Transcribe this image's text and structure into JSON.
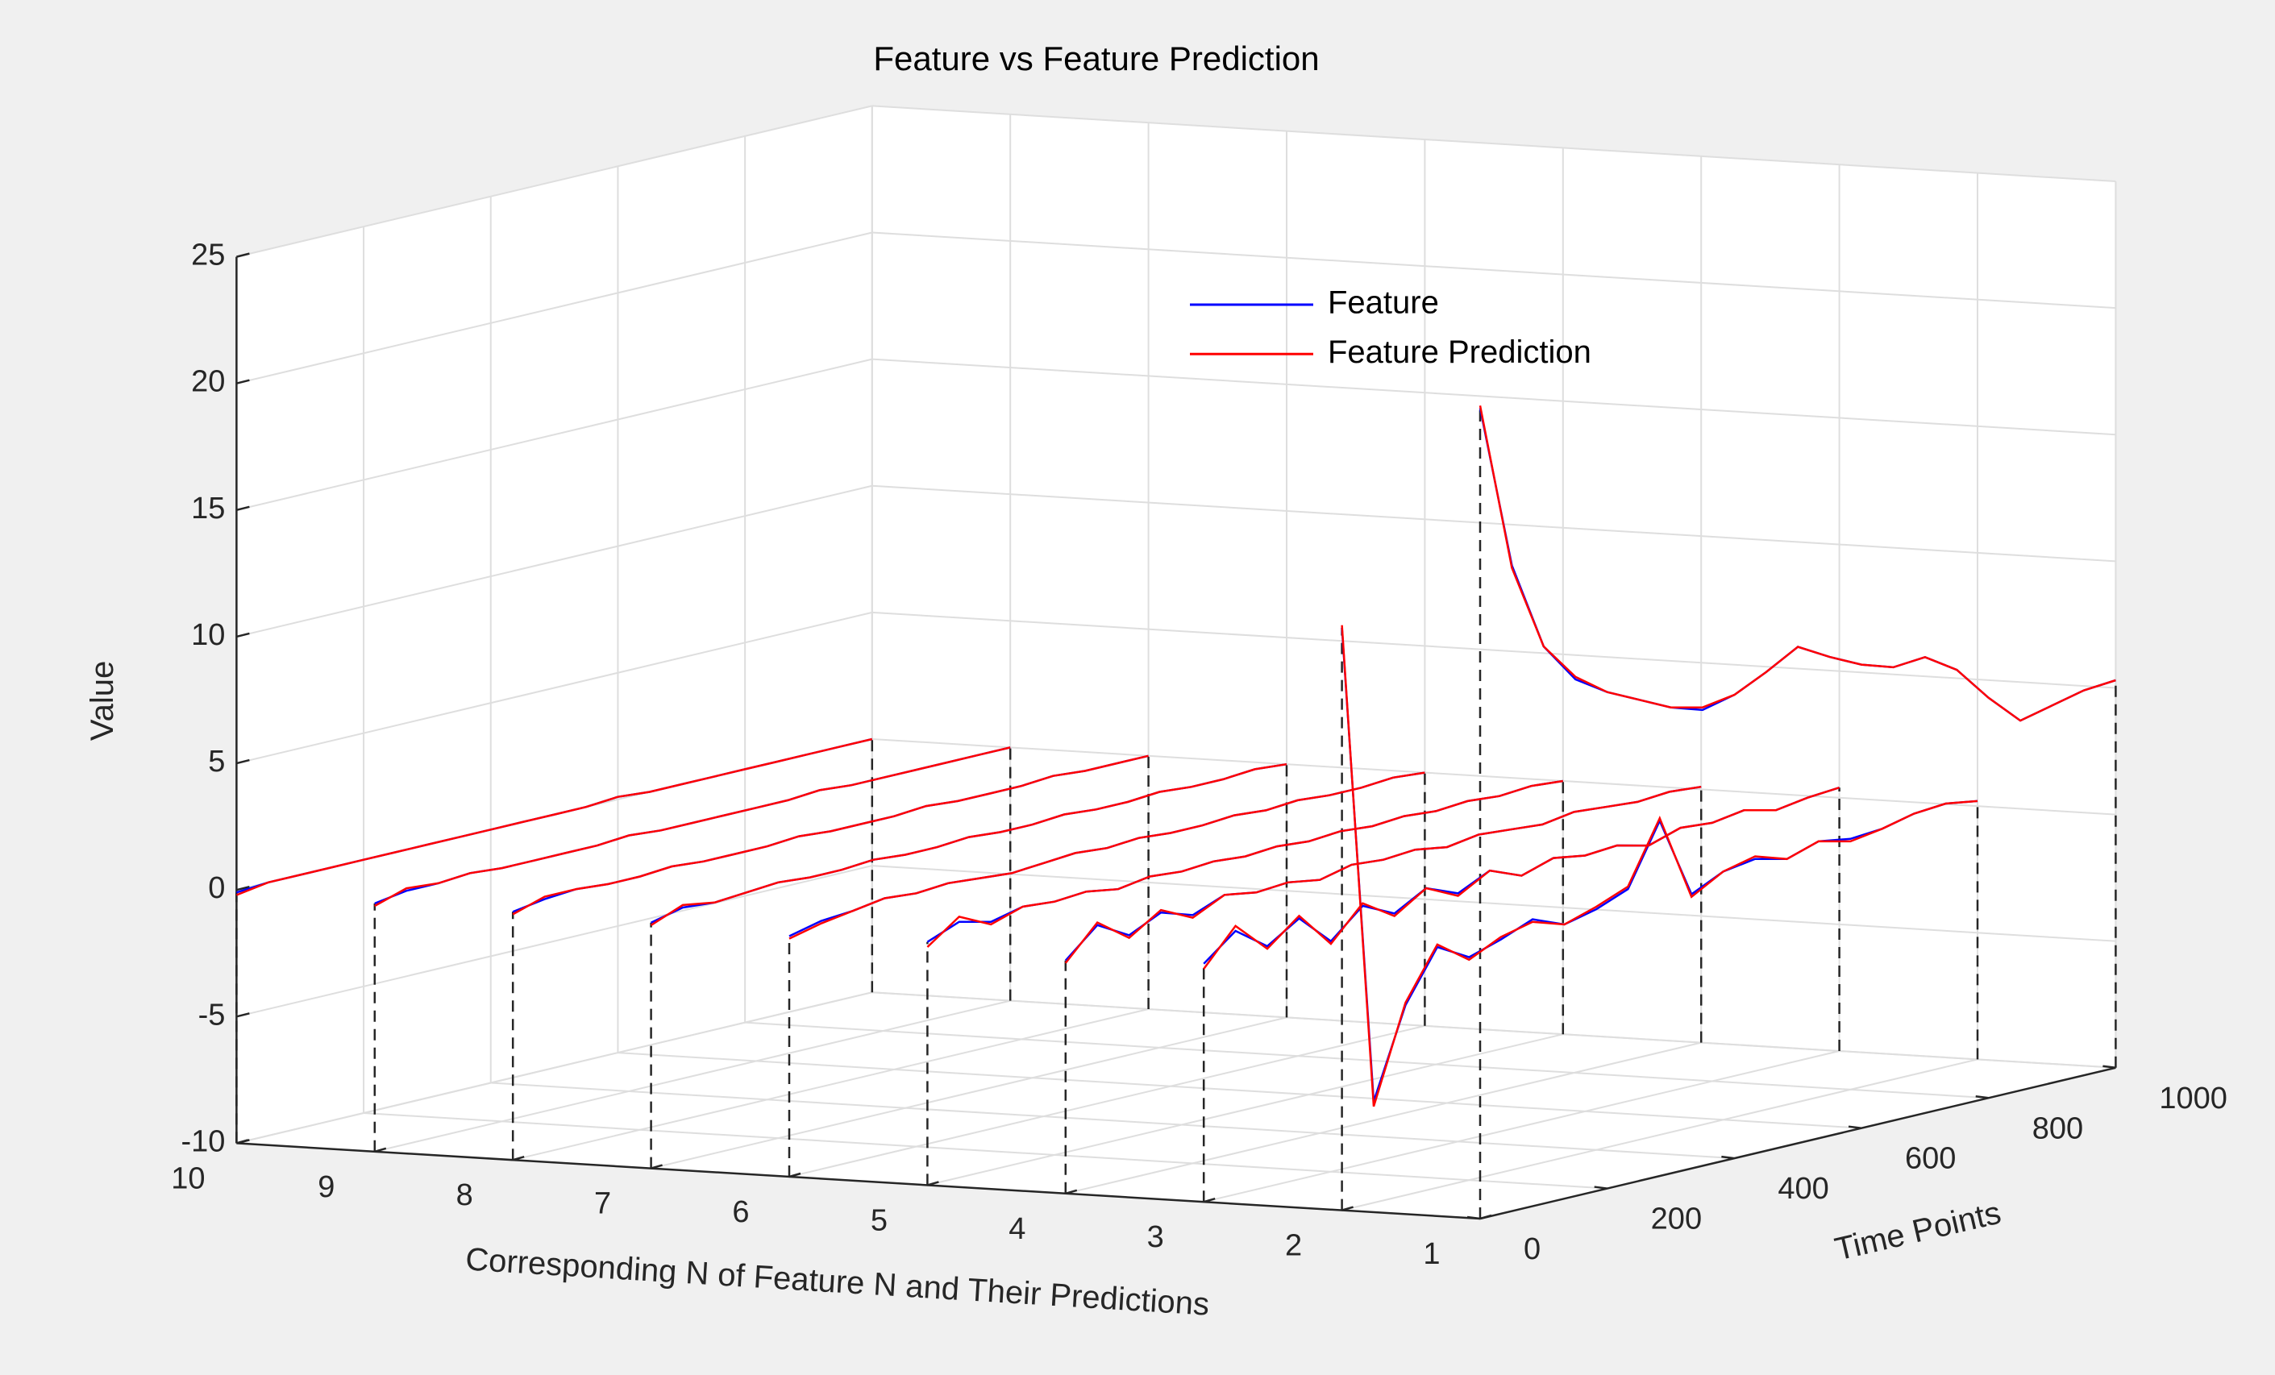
{
  "chart_data": {
    "type": "line3d",
    "title": "Feature vs Feature Prediction",
    "xlabel": "Time Points",
    "ylabel": "Corresponding N of Feature N and Their Predictions",
    "zlabel": "Value",
    "x": [
      0,
      50,
      100,
      150,
      200,
      250,
      300,
      350,
      400,
      450,
      500,
      550,
      600,
      650,
      700,
      750,
      800,
      850,
      900,
      950,
      1000
    ],
    "n": [
      1,
      2,
      3,
      4,
      5,
      6,
      7,
      8,
      9,
      10
    ],
    "xlim": [
      0,
      1000
    ],
    "xticks": [
      0,
      200,
      400,
      600,
      800,
      1000
    ],
    "ylim": [
      1,
      10
    ],
    "yticks": [
      1,
      2,
      3,
      4,
      5,
      6,
      7,
      8,
      9,
      10
    ],
    "zlim": [
      -10,
      25
    ],
    "zticks": [
      -10,
      -5,
      0,
      5,
      10,
      15,
      20,
      25
    ],
    "grid": true,
    "series": [
      {
        "name": "Feature",
        "color": "#0000ff",
        "values": [
          [
            22,
            15.5,
            12,
            10.4,
            9.6,
            9,
            8.4,
            8,
            8.3,
            8.9,
            9.6,
            8.9,
            8.3,
            7.9,
            8,
            7.2,
            5.8,
            4.6,
            4.9,
            5.2,
            5.3
          ],
          [
            13,
            -6,
            -2.5,
            -0.5,
            -1.2,
            -0.8,
            -0.3,
            -0.8,
            -0.5,
            0,
            2.4,
            -0.8,
            -0.2,
            0,
            -0.3,
            0.1,
            -0.1,
            0,
            0.3,
            0.4,
            0.2
          ],
          [
            -0.6,
            0.4,
            -0.5,
            0.3,
            -0.9,
            0.2,
            -0.4,
            0.3,
            -0.2,
            0.4,
            -0.1,
            0.3,
            0.1,
            0.2,
            -0.1,
            0.3,
            0.2,
            0.4,
            0.1,
            0.3,
            0.4
          ],
          [
            -0.8,
            0.3,
            -0.4,
            0.2,
            -0.2,
            0.3,
            0.1,
            0.2,
            0,
            0.3,
            0.2,
            0.3,
            0.1,
            0.3,
            0.2,
            0.1,
            0.3,
            0.2,
            0.1,
            0.2,
            0.1
          ],
          [
            -0.4,
            0.1,
            -0.2,
            0.1,
            0,
            0.1,
            -0.1,
            0.1,
            0,
            0.1,
            0,
            0.1,
            0,
            0.1,
            0,
            0.1,
            0,
            0.1,
            0,
            0.1,
            0
          ],
          [
            -0.5,
            -0.2,
            -0.1,
            0.1,
            0,
            0.1,
            0,
            -0.1,
            0,
            0.1,
            0,
            0.1,
            0,
            0,
            0.1,
            0,
            0.1,
            0,
            0,
            0.1,
            0
          ],
          [
            -0.3,
            0,
            -0.1,
            0,
            0.1,
            0,
            0,
            0.1,
            0,
            0,
            0.1,
            0,
            0,
            0.1,
            0,
            0,
            0.1,
            0,
            0,
            0.1,
            0
          ],
          [
            -0.2,
            0,
            0.1,
            0,
            0,
            0.1,
            0,
            0,
            0,
            0.1,
            0,
            0,
            0,
            0.1,
            0,
            0,
            0,
            0.1,
            0,
            0,
            0
          ],
          [
            -0.2,
            0,
            0,
            0.1,
            0,
            0,
            0,
            0,
            0.1,
            0,
            0,
            0,
            0,
            0,
            0.1,
            0,
            0,
            0,
            0,
            0,
            0
          ],
          [
            -0.1,
            0,
            0,
            0,
            0,
            0,
            0,
            0,
            0,
            0,
            0,
            0,
            0.1,
            0,
            0,
            0,
            0,
            0,
            0,
            0,
            0
          ]
        ]
      },
      {
        "name": "Feature Prediction",
        "color": "#ff0000",
        "values": [
          [
            22.1,
            15.4,
            12,
            10.5,
            9.6,
            9,
            8.4,
            8.1,
            8.3,
            8.9,
            9.6,
            8.9,
            8.3,
            7.9,
            8,
            7.2,
            5.8,
            4.6,
            4.9,
            5.2,
            5.3
          ],
          [
            13.1,
            -6.2,
            -2.4,
            -0.4,
            -1.3,
            -0.7,
            -0.4,
            -0.8,
            -0.4,
            0.1,
            2.5,
            -0.9,
            -0.2,
            0.1,
            -0.3,
            0.1,
            -0.2,
            0,
            0.3,
            0.4,
            0.2
          ],
          [
            -0.8,
            0.6,
            -0.6,
            0.4,
            -1,
            0.3,
            -0.5,
            0.3,
            -0.3,
            0.4,
            -0.1,
            0.3,
            0.1,
            0.2,
            -0.1,
            0.3,
            0.2,
            0.4,
            0.1,
            0.3,
            0.4
          ],
          [
            -0.9,
            0.4,
            -0.5,
            0.3,
            -0.3,
            0.3,
            0.1,
            0.2,
            0,
            0.3,
            0.2,
            0.3,
            0.1,
            0.3,
            0.2,
            0.1,
            0.3,
            0.2,
            0.1,
            0.2,
            0.1
          ],
          [
            -0.6,
            0.3,
            -0.3,
            0.1,
            0,
            0.1,
            -0.1,
            0.1,
            0,
            0.1,
            0,
            0.1,
            0,
            0.1,
            0,
            0.1,
            0,
            0.1,
            0,
            0.1,
            0
          ],
          [
            -0.6,
            -0.3,
            -0.1,
            0.1,
            0,
            0.1,
            0,
            -0.1,
            0,
            0.1,
            0,
            0.1,
            0,
            0,
            0.1,
            0,
            0.1,
            0,
            0,
            0.1,
            0
          ],
          [
            -0.4,
            0.1,
            -0.1,
            0,
            0.1,
            0,
            0,
            0.1,
            0,
            0,
            0.1,
            0,
            0,
            0.1,
            0,
            0,
            0.1,
            0,
            0,
            0.1,
            0
          ],
          [
            -0.3,
            0.1,
            0.1,
            0,
            0,
            0.1,
            0,
            0,
            0,
            0.1,
            0,
            0,
            0,
            0.1,
            0,
            0,
            0,
            0.1,
            0,
            0,
            0
          ],
          [
            -0.3,
            0.1,
            0,
            0.1,
            0,
            0,
            0,
            0,
            0.1,
            0,
            0,
            0,
            0,
            0,
            0.1,
            0,
            0,
            0,
            0,
            0,
            0
          ],
          [
            -0.2,
            0,
            0,
            0,
            0,
            0,
            0,
            0,
            0,
            0,
            0,
            0,
            0.1,
            0,
            0,
            0,
            0,
            0,
            0,
            0,
            0
          ]
        ]
      }
    ]
  }
}
